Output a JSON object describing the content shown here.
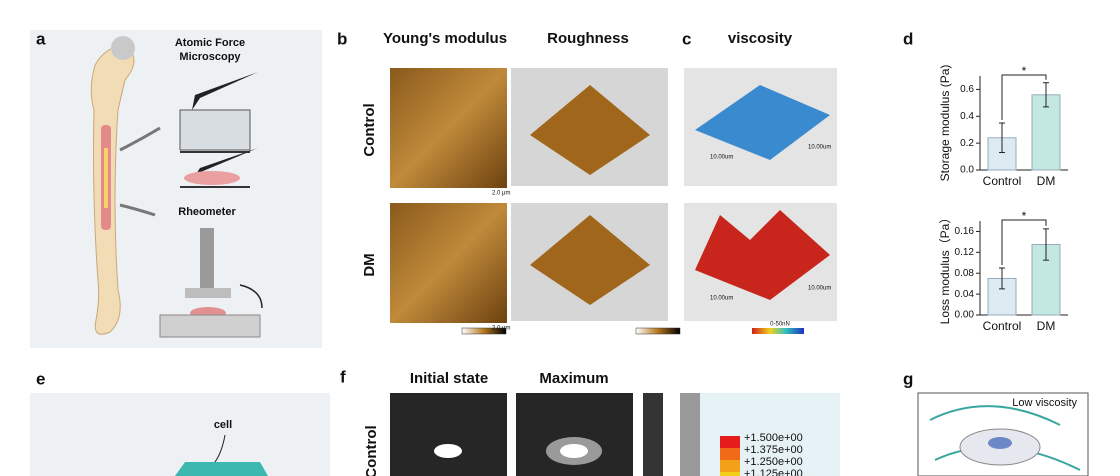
{
  "panel_a": {
    "label": "a",
    "afm": [
      "Atomic Force",
      "Microscopy"
    ],
    "rheometer": "Rheometer"
  },
  "panel_b": {
    "label": "b",
    "columns": [
      "Young's modulus",
      "Roughness"
    ],
    "rows": [
      "Control",
      "DM"
    ],
    "scale_bars": [
      "2.0 μm",
      "2.0 μm"
    ]
  },
  "panel_c": {
    "label": "c",
    "column": "viscosity",
    "scale_label": "0-50nN",
    "axis_labels": [
      "10.00um",
      "10.00um",
      "10.00um",
      "10.00um"
    ]
  },
  "panel_d": {
    "label": "d",
    "charts": [
      {
        "type": "bar",
        "ylabel": "Storage modulus (Pa)",
        "categories": [
          "Control",
          "DM"
        ],
        "values": [
          0.24,
          0.56
        ],
        "errors": [
          0.11,
          0.09
        ],
        "colors": [
          "#dcebf2",
          "#c3e8e1"
        ],
        "ylim": [
          0,
          0.7
        ],
        "yticks": [
          {
            "value": 0,
            "label": "0.0"
          },
          0.2,
          0.4,
          0.6
        ],
        "significance": "*"
      },
      {
        "type": "bar",
        "ylabel": "Loss modulus（Pa）",
        "categories": [
          "Control",
          "DM"
        ],
        "values": [
          0.07,
          0.135
        ],
        "errors": [
          0.02,
          0.03
        ],
        "colors": [
          "#dcebf2",
          "#c3e8e1"
        ],
        "ylim": [
          0,
          0.18
        ],
        "yticks": [
          {
            "value": 0,
            "label": "0.00"
          },
          0.04,
          0.08,
          0.12,
          0.16
        ],
        "significance": "*"
      }
    ]
  },
  "panel_e": {
    "label": "e",
    "cell": "cell"
  },
  "panel_f": {
    "label": "f",
    "columns": [
      "Initial state",
      "Maximum"
    ],
    "row": "Control",
    "legend": [
      "+1.500e+00",
      "+1.375e+00",
      "+1.250e+00",
      "+1.125e+00"
    ]
  },
  "panel_g": {
    "label": "g",
    "annotation": "Low viscosity"
  }
}
